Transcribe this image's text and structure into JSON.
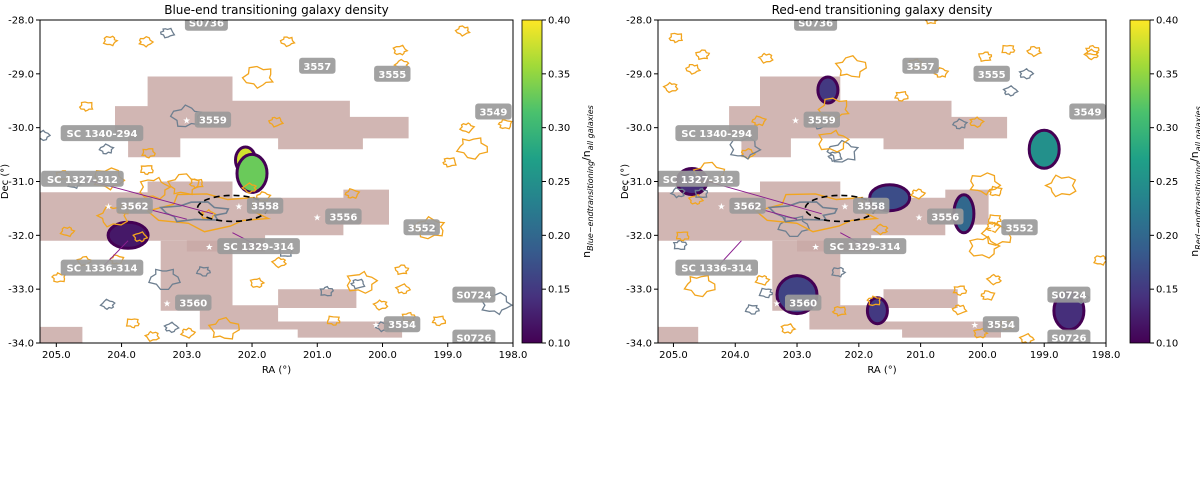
{
  "chart_data": [
    {
      "type": "heatmap",
      "title": "Blue-end transitioning galaxy density",
      "xlabel": "RA (°)",
      "ylabel": "Dec (°)",
      "xlim": [
        205.25,
        198.0
      ],
      "ylim": [
        -34.0,
        -28.0
      ],
      "xticks": [
        "205.0",
        "204.0",
        "203.0",
        "202.0",
        "201.0",
        "200.0",
        "199.0",
        "198.0"
      ],
      "xtick_values": [
        205,
        204,
        203,
        202,
        201,
        200,
        199,
        198
      ],
      "yticks": [
        "-28.0",
        "-29.0",
        "-30.0",
        "-31.0",
        "-32.0",
        "-33.0",
        "-34.0"
      ],
      "ytick_values": [
        -28,
        -29,
        -30,
        -31,
        -32,
        -33,
        -34
      ],
      "colorbar": {
        "label_main": "n",
        "label_sub": "Blue−endtransitioning",
        "label_den_main": "n",
        "label_den_sub": "all galaxies",
        "ticks": [
          "0.40",
          "0.35",
          "0.30",
          "0.25",
          "0.20",
          "0.15",
          "0.10"
        ],
        "range": [
          0.1,
          0.4
        ],
        "colormap": [
          "#440154",
          "#46327e",
          "#365c8d",
          "#277f8e",
          "#1fa187",
          "#4ac16d",
          "#a0da39",
          "#fde725"
        ]
      },
      "density_blobs": [
        {
          "ra": 202.1,
          "dec": -30.6,
          "level": 0.38
        },
        {
          "ra": 202.0,
          "dec": -30.85,
          "level": 0.33
        },
        {
          "ra": 203.9,
          "dec": -32.0,
          "level": 0.12
        }
      ],
      "labels": [
        {
          "text": "S0736",
          "ra": 202.7,
          "dec": -28.05
        },
        {
          "text": "3557",
          "ra": 201.0,
          "dec": -28.85
        },
        {
          "text": "3555",
          "ra": 199.85,
          "dec": -29.0
        },
        {
          "text": "3549",
          "ra": 198.3,
          "dec": -29.7
        },
        {
          "text": "3559",
          "ra": 202.6,
          "dec": -29.85
        },
        {
          "text": "SC 1340-294",
          "ra": 204.3,
          "dec": -30.1
        },
        {
          "text": "SC 1327-312",
          "ra": 204.6,
          "dec": -30.95
        },
        {
          "text": "3562",
          "ra": 203.8,
          "dec": -31.45
        },
        {
          "text": "3558",
          "ra": 201.8,
          "dec": -31.45
        },
        {
          "text": "3556",
          "ra": 200.6,
          "dec": -31.65
        },
        {
          "text": "3552",
          "ra": 199.4,
          "dec": -31.85
        },
        {
          "text": "SC 1329-314",
          "ra": 201.9,
          "dec": -32.2
        },
        {
          "text": "SC 1336-314",
          "ra": 204.3,
          "dec": -32.6
        },
        {
          "text": "3560",
          "ra": 202.9,
          "dec": -33.25
        },
        {
          "text": "S0724",
          "ra": 198.6,
          "dec": -33.1
        },
        {
          "text": "3554",
          "ra": 199.7,
          "dec": -33.65
        },
        {
          "text": "S0726",
          "ra": 198.6,
          "dec": -33.9
        }
      ]
    },
    {
      "type": "heatmap",
      "title": "Red-end transitioning galaxy density",
      "xlabel": "RA (°)",
      "ylabel": "Dec (°)",
      "xlim": [
        205.25,
        198.0
      ],
      "ylim": [
        -34.0,
        -28.0
      ],
      "xticks": [
        "205.0",
        "204.0",
        "203.0",
        "202.0",
        "201.0",
        "200.0",
        "199.0",
        "198.0"
      ],
      "xtick_values": [
        205,
        204,
        203,
        202,
        201,
        200,
        199,
        198
      ],
      "yticks": [
        "-28.0",
        "-29.0",
        "-30.0",
        "-31.0",
        "-32.0",
        "-33.0",
        "-34.0"
      ],
      "ytick_values": [
        -28,
        -29,
        -30,
        -31,
        -32,
        -33,
        -34
      ],
      "colorbar": {
        "label_main": "n",
        "label_sub": "Red−endtransitioning",
        "label_den_main": "n",
        "label_den_sub": "all galaxies",
        "ticks": [
          "0.40",
          "0.35",
          "0.30",
          "0.25",
          "0.20",
          "0.15",
          "0.10"
        ],
        "range": [
          0.1,
          0.4
        ],
        "colormap": [
          "#440154",
          "#46327e",
          "#365c8d",
          "#277f8e",
          "#1fa187",
          "#4ac16d",
          "#a0da39",
          "#fde725"
        ]
      },
      "density_blobs": [
        {
          "ra": 202.5,
          "dec": -29.3,
          "level": 0.15
        },
        {
          "ra": 199.0,
          "dec": -30.4,
          "level": 0.25
        },
        {
          "ra": 201.5,
          "dec": -31.3,
          "level": 0.17
        },
        {
          "ra": 200.3,
          "dec": -31.6,
          "level": 0.2
        },
        {
          "ra": 204.7,
          "dec": -31.0,
          "level": 0.14
        },
        {
          "ra": 203.0,
          "dec": -33.1,
          "level": 0.16
        },
        {
          "ra": 201.7,
          "dec": -33.4,
          "level": 0.15
        },
        {
          "ra": 198.6,
          "dec": -33.4,
          "level": 0.14
        }
      ],
      "labels": [
        {
          "text": "S0736",
          "ra": 202.7,
          "dec": -28.05
        },
        {
          "text": "3557",
          "ra": 201.0,
          "dec": -28.85
        },
        {
          "text": "3555",
          "ra": 199.85,
          "dec": -29.0
        },
        {
          "text": "3549",
          "ra": 198.3,
          "dec": -29.7
        },
        {
          "text": "3559",
          "ra": 202.6,
          "dec": -29.85
        },
        {
          "text": "SC 1340-294",
          "ra": 204.3,
          "dec": -30.1
        },
        {
          "text": "SC 1327-312",
          "ra": 204.6,
          "dec": -30.95
        },
        {
          "text": "3562",
          "ra": 203.8,
          "dec": -31.45
        },
        {
          "text": "3558",
          "ra": 201.8,
          "dec": -31.45
        },
        {
          "text": "3556",
          "ra": 200.6,
          "dec": -31.65
        },
        {
          "text": "3552",
          "ra": 199.4,
          "dec": -31.85
        },
        {
          "text": "SC 1329-314",
          "ra": 201.9,
          "dec": -32.2
        },
        {
          "text": "SC 1336-314",
          "ra": 204.3,
          "dec": -32.6
        },
        {
          "text": "3560",
          "ra": 202.9,
          "dec": -33.25
        },
        {
          "text": "S0724",
          "ra": 198.6,
          "dec": -33.1
        },
        {
          "text": "3554",
          "ra": 199.7,
          "dec": -33.65
        },
        {
          "text": "S0726",
          "ra": 198.6,
          "dec": -33.9
        }
      ]
    }
  ]
}
